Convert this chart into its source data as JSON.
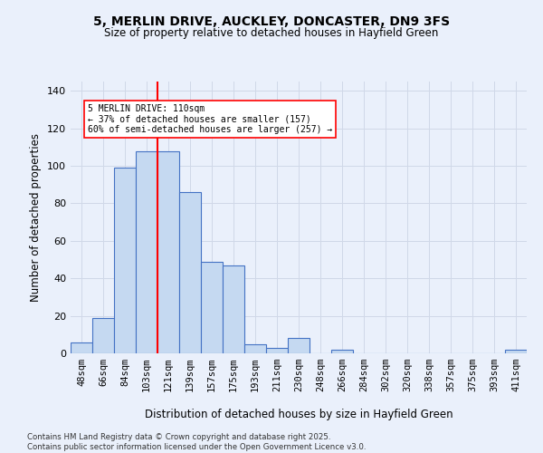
{
  "title_line1": "5, MERLIN DRIVE, AUCKLEY, DONCASTER, DN9 3FS",
  "title_line2": "Size of property relative to detached houses in Hayfield Green",
  "xlabel": "Distribution of detached houses by size in Hayfield Green",
  "ylabel": "Number of detached properties",
  "categories": [
    "48sqm",
    "66sqm",
    "84sqm",
    "103sqm",
    "121sqm",
    "139sqm",
    "157sqm",
    "175sqm",
    "193sqm",
    "211sqm",
    "230sqm",
    "248sqm",
    "266sqm",
    "284sqm",
    "302sqm",
    "320sqm",
    "338sqm",
    "357sqm",
    "375sqm",
    "393sqm",
    "411sqm"
  ],
  "values": [
    6,
    19,
    99,
    108,
    108,
    86,
    49,
    47,
    5,
    3,
    8,
    0,
    2,
    0,
    0,
    0,
    0,
    0,
    0,
    0,
    2
  ],
  "bar_color": "#c5d9f1",
  "bar_edge_color": "#4472c4",
  "grid_color": "#d0d8e8",
  "background_color": "#eaf0fb",
  "vline_color": "red",
  "annotation_text": "5 MERLIN DRIVE: 110sqm\n← 37% of detached houses are smaller (157)\n60% of semi-detached houses are larger (257) →",
  "annotation_box_color": "white",
  "annotation_box_edge": "red",
  "footer": "Contains HM Land Registry data © Crown copyright and database right 2025.\nContains public sector information licensed under the Open Government Licence v3.0.",
  "ylim": [
    0,
    145
  ],
  "yticks": [
    0,
    20,
    40,
    60,
    80,
    100,
    120,
    140
  ],
  "vline_pos": 3.5
}
